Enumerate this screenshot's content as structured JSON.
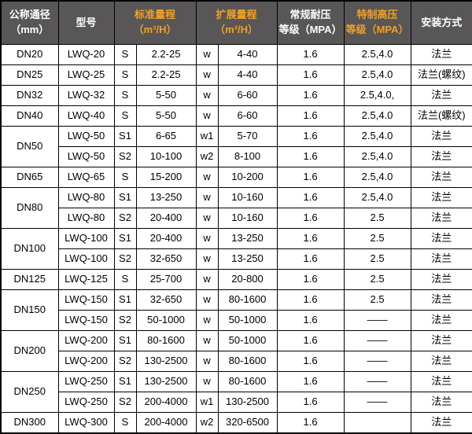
{
  "colors": {
    "header_bg": "#585656",
    "header_text": "#ffffff",
    "header_accent": "#f2a024",
    "border": "#000000",
    "row_bg": "#ffffff",
    "cell_text": "#000000"
  },
  "table": {
    "headers": [
      {
        "label": "公称通径\n（mm）",
        "accent": false
      },
      {
        "label": "型号",
        "accent": false
      },
      {
        "label": "标准量程\n（m³/H）",
        "accent": true
      },
      {
        "label": "扩展量程\n（m³/H）",
        "accent": true
      },
      {
        "label": "常规耐压\n等级（MPA）",
        "accent": false
      },
      {
        "label": "特制高压\n等级（MPA）",
        "accent": true
      },
      {
        "label": "安装方式",
        "accent": false
      }
    ],
    "rows": [
      {
        "dn": "DN20",
        "dn_span": 1,
        "model": "LWQ-20",
        "s_code": "S",
        "s_range": "2.2-25",
        "w_code": "w",
        "w_range": "4-40",
        "pressure": "1.6",
        "high_pressure": "2.5,4.0",
        "install": "法兰"
      },
      {
        "dn": "DN25",
        "dn_span": 1,
        "model": "LWQ-25",
        "s_code": "S",
        "s_range": "2.2-25",
        "w_code": "w",
        "w_range": "4-40",
        "pressure": "1.6",
        "high_pressure": "2.5,4.0",
        "install": "法兰(螺纹)"
      },
      {
        "dn": "DN32",
        "dn_span": 1,
        "model": "LWQ-32",
        "s_code": "S",
        "s_range": "5-50",
        "w_code": "w",
        "w_range": "6-60",
        "pressure": "1.6",
        "high_pressure": "2.5,4.0,",
        "install": "法兰"
      },
      {
        "dn": "DN40",
        "dn_span": 1,
        "model": "LWQ-40",
        "s_code": "S",
        "s_range": "5-50",
        "w_code": "w",
        "w_range": "6-60",
        "pressure": "1.6",
        "high_pressure": "2.5,4.0",
        "install": "法兰(螺纹)"
      },
      {
        "dn": "DN50",
        "dn_span": 2,
        "model": "LWQ-50",
        "s_code": "S1",
        "s_range": "6-65",
        "w_code": "w1",
        "w_range": "5-70",
        "pressure": "1.6",
        "high_pressure": "2.5,4.0",
        "install": "法兰"
      },
      {
        "dn": null,
        "model": "LWQ-50",
        "s_code": "S2",
        "s_range": "10-100",
        "w_code": "w2",
        "w_range": "8-100",
        "pressure": "1.6",
        "high_pressure": "2.5,4.0",
        "install": "法兰"
      },
      {
        "dn": "DN65",
        "dn_span": 1,
        "model": "LWQ-65",
        "s_code": "S",
        "s_range": "15-200",
        "w_code": "w",
        "w_range": "10-200",
        "pressure": "1.6",
        "high_pressure": "2.5,4.0",
        "install": "法兰"
      },
      {
        "dn": "DN80",
        "dn_span": 2,
        "model": "LWQ-80",
        "s_code": "S1",
        "s_range": "13-250",
        "w_code": "w",
        "w_range": "10-160",
        "pressure": "1.6",
        "high_pressure": "2.5,4.0",
        "install": "法兰"
      },
      {
        "dn": null,
        "model": "LWQ-80",
        "s_code": "S2",
        "s_range": "20-400",
        "w_code": "w",
        "w_range": "10-160",
        "pressure": "1.6",
        "high_pressure": "2.5",
        "install": "法兰"
      },
      {
        "dn": "DN100",
        "dn_span": 2,
        "model": "LWQ-100",
        "s_code": "S1",
        "s_range": "20-400",
        "w_code": "w",
        "w_range": "13-250",
        "pressure": "1.6",
        "high_pressure": "2.5",
        "install": "法兰"
      },
      {
        "dn": null,
        "model": "LWQ-100",
        "s_code": "S2",
        "s_range": "32-650",
        "w_code": "w",
        "w_range": "13-250",
        "pressure": "1.6",
        "high_pressure": "2.5",
        "install": "法兰"
      },
      {
        "dn": "DN125",
        "dn_span": 1,
        "model": "LWQ-125",
        "s_code": "S",
        "s_range": "25-700",
        "w_code": "w",
        "w_range": "20-800",
        "pressure": "1.6",
        "high_pressure": "2.5",
        "install": "法兰"
      },
      {
        "dn": "DN150",
        "dn_span": 2,
        "model": "LWQ-150",
        "s_code": "S1",
        "s_range": "32-650",
        "w_code": "w",
        "w_range": "80-1600",
        "pressure": "1.6",
        "high_pressure": "2.5",
        "install": "法兰"
      },
      {
        "dn": null,
        "model": "LWQ-150",
        "s_code": "S2",
        "s_range": "50-1000",
        "w_code": "w",
        "w_range": "50-1000",
        "pressure": "1.6",
        "high_pressure": "——",
        "install": "法兰"
      },
      {
        "dn": "DN200",
        "dn_span": 2,
        "model": "LWQ-200",
        "s_code": "S1",
        "s_range": "80-1600",
        "w_code": "w",
        "w_range": "50-1000",
        "pressure": "1.6",
        "high_pressure": "——",
        "install": "法兰"
      },
      {
        "dn": null,
        "model": "LWQ-200",
        "s_code": "S2",
        "s_range": "130-2500",
        "w_code": "w",
        "w_range": "80-1600",
        "pressure": "1.6",
        "high_pressure": "——",
        "install": "法兰"
      },
      {
        "dn": "DN250",
        "dn_span": 2,
        "model": "LWQ-250",
        "s_code": "S1",
        "s_range": "130-2500",
        "w_code": "w",
        "w_range": "80-1600",
        "pressure": "1.6",
        "high_pressure": "——",
        "install": "法兰"
      },
      {
        "dn": null,
        "model": "LWQ-250",
        "s_code": "S2",
        "s_range": "200-4000",
        "w_code": "w1",
        "w_range": "130-2500",
        "pressure": "1.6",
        "high_pressure": "——",
        "install": "法兰"
      },
      {
        "dn": "DN300",
        "dn_span": 1,
        "model": "LWQ-300",
        "s_code": "S",
        "s_range": "200-4000",
        "w_code": "w2",
        "w_range": "320-6500",
        "pressure": "1.6",
        "high_pressure": "",
        "install": "法兰"
      }
    ]
  }
}
